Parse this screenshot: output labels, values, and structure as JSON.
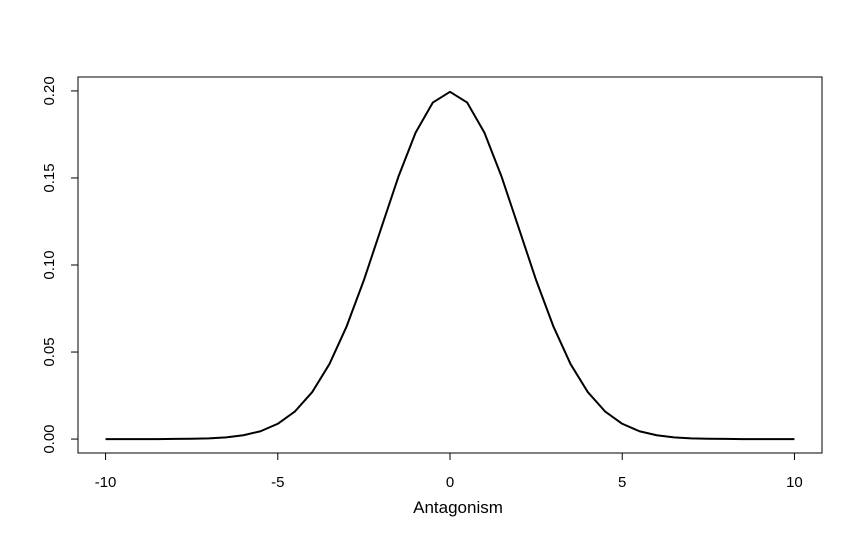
{
  "chart_data": {
    "type": "line",
    "xlabel": "Antagonism",
    "x": [
      -10,
      -9.5,
      -9,
      -8.5,
      -8,
      -7.5,
      -7,
      -6.5,
      -6,
      -5.5,
      -5,
      -4.5,
      -4,
      -3.5,
      -3,
      -2.5,
      -2,
      -1.5,
      -1,
      -0.5,
      0,
      0.5,
      1,
      1.5,
      2,
      2.5,
      3,
      3.5,
      4,
      4.5,
      5,
      5.5,
      6,
      6.5,
      7,
      7.5,
      8,
      8.5,
      9,
      9.5,
      10
    ],
    "series": [
      {
        "color": "#000000",
        "values": [
          0,
          0,
          0,
          0,
          0.0001,
          0.0002,
          0.0004,
          0.001,
          0.0022,
          0.0045,
          0.0088,
          0.0159,
          0.027,
          0.0431,
          0.0648,
          0.0913,
          0.121,
          0.1506,
          0.176,
          0.1933,
          0.1995,
          0.1933,
          0.176,
          0.1506,
          0.121,
          0.0913,
          0.0648,
          0.0431,
          0.027,
          0.0159,
          0.0088,
          0.0045,
          0.0022,
          0.001,
          0.0004,
          0.0002,
          0.0001,
          0,
          0,
          0,
          0
        ]
      }
    ],
    "xlim": [
      -10.8,
      10.8
    ],
    "xticks": [
      -10,
      -5,
      0,
      5,
      10
    ],
    "ylim": [
      -0.008,
      0.208
    ],
    "yticks": [
      {
        "value": 0,
        "label": "0.00"
      },
      {
        "value": 0.05,
        "label": "0.05"
      },
      {
        "value": 0.1,
        "label": "0.10"
      },
      {
        "value": 0.15,
        "label": "0.15"
      },
      {
        "value": 0.2,
        "label": "0.20"
      }
    ]
  }
}
